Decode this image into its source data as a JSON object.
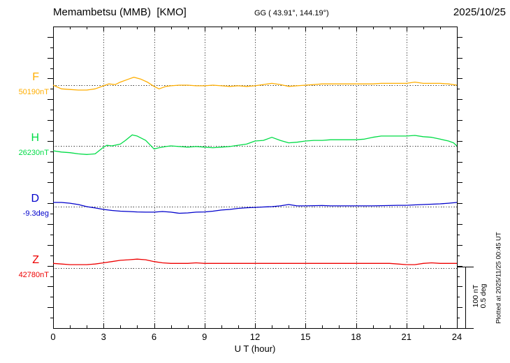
{
  "header": {
    "title": "Memambetsu (MMB)  [KMO]",
    "coords": "GG ( 43.91°, 144.19°)",
    "date": "2025/10/25"
  },
  "scale_bar": {
    "nt_label": "100 nT",
    "deg_label": "0.5 deg"
  },
  "footer": {
    "plotted_at": "Plotted at 2025/11/25 00:45 UT"
  },
  "chart_data": {
    "type": "line",
    "title": "Memambetsu (MMB) [KMO] magnetogram",
    "xlabel": "U T (hour)",
    "x_range": [
      0,
      24
    ],
    "x_tick_labels": [
      "0",
      "3",
      "6",
      "9",
      "12",
      "15",
      "18",
      "21",
      "24"
    ],
    "x_tick_hours": [
      0,
      3,
      6,
      9,
      12,
      15,
      18,
      21,
      24
    ],
    "grid_hours": [
      3,
      6,
      9,
      12,
      15,
      18,
      21
    ],
    "grid": true,
    "scale": {
      "nT_per_bar": 100,
      "deg_per_bar": 0.5
    },
    "series": [
      {
        "name": "F",
        "unit": "nT",
        "ref": 50190,
        "ref_label": "50190nT",
        "color": "#FFAE00",
        "points": [
          [
            0,
            50190
          ],
          [
            0.5,
            50184
          ],
          [
            1,
            50183
          ],
          [
            1.5,
            50182
          ],
          [
            2,
            50182
          ],
          [
            2.5,
            50184
          ],
          [
            3,
            50189
          ],
          [
            3.3,
            50192
          ],
          [
            3.7,
            50191
          ],
          [
            4,
            50195
          ],
          [
            4.5,
            50200
          ],
          [
            4.8,
            50203
          ],
          [
            5.2,
            50200
          ],
          [
            5.6,
            50195
          ],
          [
            6,
            50188
          ],
          [
            6.3,
            50184
          ],
          [
            6.7,
            50188
          ],
          [
            7,
            50189
          ],
          [
            7.5,
            50190
          ],
          [
            8,
            50190
          ],
          [
            8.5,
            50189
          ],
          [
            9,
            50189
          ],
          [
            9.5,
            50190
          ],
          [
            10,
            50189
          ],
          [
            10.5,
            50188
          ],
          [
            11,
            50189
          ],
          [
            11.5,
            50188
          ],
          [
            12,
            50189
          ],
          [
            12.5,
            50191
          ],
          [
            13,
            50193
          ],
          [
            13.5,
            50191
          ],
          [
            14,
            50188
          ],
          [
            14.5,
            50189
          ],
          [
            15,
            50190
          ],
          [
            15.5,
            50191
          ],
          [
            16,
            50192
          ],
          [
            17,
            50192
          ],
          [
            18,
            50192
          ],
          [
            19,
            50192
          ],
          [
            19.5,
            50193
          ],
          [
            20,
            50193
          ],
          [
            21,
            50193
          ],
          [
            21.5,
            50195
          ],
          [
            22,
            50193
          ],
          [
            23,
            50193
          ],
          [
            23.5,
            50192
          ],
          [
            24,
            50190
          ]
        ]
      },
      {
        "name": "H",
        "unit": "nT",
        "ref": 26230,
        "ref_label": "26230nT",
        "color": "#00DC46",
        "points": [
          [
            0,
            26222
          ],
          [
            0.5,
            26220
          ],
          [
            1,
            26219
          ],
          [
            1.5,
            26217
          ],
          [
            2,
            26216
          ],
          [
            2.5,
            26217
          ],
          [
            3,
            26228
          ],
          [
            3.2,
            26231
          ],
          [
            3.5,
            26230
          ],
          [
            4,
            26233
          ],
          [
            4.3,
            26239
          ],
          [
            4.7,
            26248
          ],
          [
            5,
            26246
          ],
          [
            5.5,
            26239
          ],
          [
            6,
            26225
          ],
          [
            6.3,
            26227
          ],
          [
            6.7,
            26229
          ],
          [
            7,
            26230
          ],
          [
            7.5,
            26229
          ],
          [
            8,
            26228
          ],
          [
            8.5,
            26229
          ],
          [
            9,
            26228
          ],
          [
            9.5,
            26227
          ],
          [
            10,
            26228
          ],
          [
            10.5,
            26229
          ],
          [
            11,
            26231
          ],
          [
            11.5,
            26233
          ],
          [
            12,
            26238
          ],
          [
            12.5,
            26239
          ],
          [
            13,
            26244
          ],
          [
            13.5,
            26239
          ],
          [
            14,
            26235
          ],
          [
            14.5,
            26236
          ],
          [
            15,
            26238
          ],
          [
            15.5,
            26239
          ],
          [
            16,
            26239
          ],
          [
            16.5,
            26240
          ],
          [
            17,
            26240
          ],
          [
            18,
            26240
          ],
          [
            18.5,
            26241
          ],
          [
            19,
            26244
          ],
          [
            19.5,
            26246
          ],
          [
            20,
            26246
          ],
          [
            21,
            26246
          ],
          [
            21.5,
            26247
          ],
          [
            22,
            26245
          ],
          [
            22.5,
            26244
          ],
          [
            23,
            26241
          ],
          [
            23.5,
            26238
          ],
          [
            23.8,
            26235
          ],
          [
            24,
            26230
          ]
        ]
      },
      {
        "name": "D",
        "unit": "deg",
        "ref": -9.3,
        "ref_label": "-9.3deg",
        "color": "#0000CC",
        "points": [
          [
            0,
            -9.266
          ],
          [
            0.5,
            -9.266
          ],
          [
            1,
            -9.272
          ],
          [
            1.5,
            -9.283
          ],
          [
            2,
            -9.3
          ],
          [
            2.5,
            -9.311
          ],
          [
            3,
            -9.323
          ],
          [
            3.5,
            -9.331
          ],
          [
            4,
            -9.337
          ],
          [
            4.5,
            -9.34
          ],
          [
            5,
            -9.343
          ],
          [
            5.5,
            -9.345
          ],
          [
            6,
            -9.345
          ],
          [
            6.5,
            -9.34
          ],
          [
            7,
            -9.345
          ],
          [
            7.5,
            -9.354
          ],
          [
            8,
            -9.351
          ],
          [
            8.5,
            -9.345
          ],
          [
            9,
            -9.343
          ],
          [
            9.5,
            -9.337
          ],
          [
            10,
            -9.328
          ],
          [
            10.5,
            -9.323
          ],
          [
            11,
            -9.314
          ],
          [
            11.5,
            -9.309
          ],
          [
            12,
            -9.306
          ],
          [
            12.5,
            -9.303
          ],
          [
            13,
            -9.3
          ],
          [
            13.5,
            -9.294
          ],
          [
            14,
            -9.283
          ],
          [
            14.5,
            -9.294
          ],
          [
            15,
            -9.294
          ],
          [
            16,
            -9.291
          ],
          [
            16.5,
            -9.294
          ],
          [
            17,
            -9.294
          ],
          [
            18,
            -9.294
          ],
          [
            19,
            -9.294
          ],
          [
            20,
            -9.291
          ],
          [
            20.5,
            -9.289
          ],
          [
            21,
            -9.289
          ],
          [
            21.5,
            -9.286
          ],
          [
            22,
            -9.283
          ],
          [
            22.5,
            -9.28
          ],
          [
            23,
            -9.277
          ],
          [
            23.5,
            -9.272
          ],
          [
            24,
            -9.266
          ]
        ]
      },
      {
        "name": "Z",
        "unit": "nT",
        "ref": 42780,
        "ref_label": "42780nT",
        "color": "#EE0000",
        "points": [
          [
            0,
            42787
          ],
          [
            0.5,
            42786
          ],
          [
            1,
            42785
          ],
          [
            1.5,
            42785
          ],
          [
            2,
            42785
          ],
          [
            2.5,
            42786
          ],
          [
            3,
            42788
          ],
          [
            3.5,
            42790
          ],
          [
            4,
            42792
          ],
          [
            4.5,
            42793
          ],
          [
            5,
            42794
          ],
          [
            5.5,
            42793
          ],
          [
            6,
            42790
          ],
          [
            6.5,
            42788
          ],
          [
            7,
            42787
          ],
          [
            7.5,
            42787
          ],
          [
            8,
            42787
          ],
          [
            8.5,
            42788
          ],
          [
            9,
            42787
          ],
          [
            9.5,
            42787
          ],
          [
            10,
            42787
          ],
          [
            10.5,
            42787
          ],
          [
            11,
            42787
          ],
          [
            11.5,
            42787
          ],
          [
            12,
            42787
          ],
          [
            13,
            42787
          ],
          [
            14,
            42787
          ],
          [
            15,
            42787
          ],
          [
            16,
            42787
          ],
          [
            17,
            42787
          ],
          [
            18,
            42787
          ],
          [
            19,
            42787
          ],
          [
            20,
            42787
          ],
          [
            20.5,
            42786
          ],
          [
            21,
            42785
          ],
          [
            21.5,
            42785
          ],
          [
            22,
            42787
          ],
          [
            22.5,
            42788
          ],
          [
            23,
            42787
          ],
          [
            23.5,
            42787
          ],
          [
            24,
            42787
          ]
        ]
      }
    ]
  }
}
